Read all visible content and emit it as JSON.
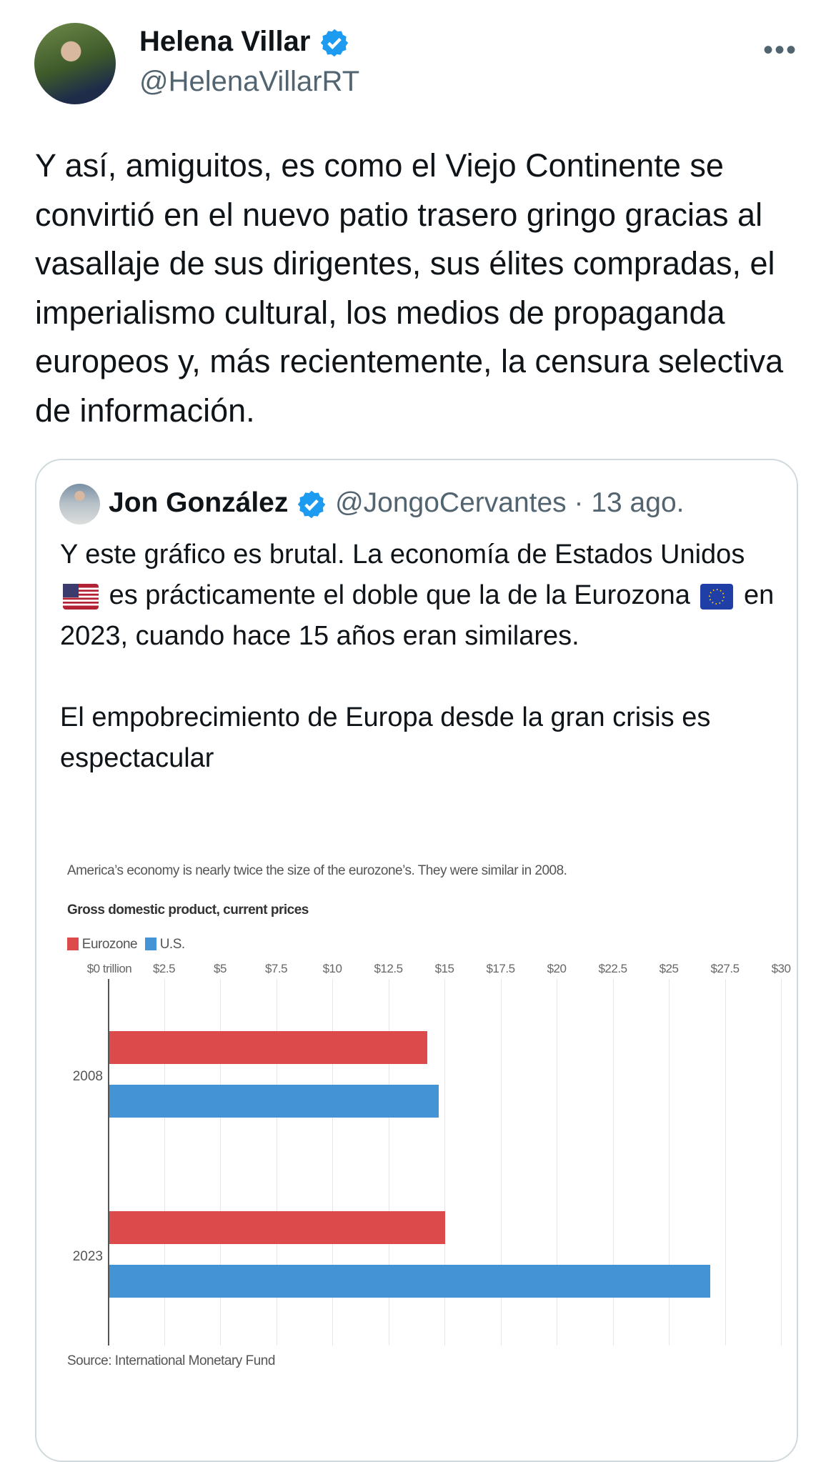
{
  "tweet": {
    "author_name": "Helena Villar",
    "author_handle": "@HelenaVillarRT",
    "more_label": "•••",
    "text": "Y así, amiguitos, es como el Viejo Continente se convirtió en el nuevo patio trasero gringo gracias al vasallaje de sus dirigentes, sus élites compradas, el imperialismo cultural, los medios de propaganda europeos y, más recientemente, la censura selectiva de información."
  },
  "quoted": {
    "author_name": "Jon González",
    "author_handle": "@JongoCervantes",
    "separator": " · ",
    "date": "13 ago.",
    "para1_a": "Y este gráfico es brutal. La economía de Estados Unidos",
    "para1_b": "es prácticamente el doble que la de la Eurozona",
    "para1_c": "en 2023, cuando hace 15 años eran similares.",
    "para2": "El empobrecimiento de Europa desde la gran crisis es espectacular"
  },
  "colors": {
    "verified": "#1d9bf0",
    "eurozone": "#dc4a4c",
    "us": "#4494d5"
  },
  "chart_data": {
    "type": "bar",
    "orientation": "horizontal",
    "caption": "America’s economy is nearly twice the size of the eurozone’s. They were similar in 2008.",
    "title": "Gross domestic product, current prices",
    "categories": [
      "2008",
      "2023"
    ],
    "series": [
      {
        "name": "Eurozone",
        "values": [
          14.2,
          15.0
        ]
      },
      {
        "name": "U.S.",
        "values": [
          14.7,
          26.8
        ]
      }
    ],
    "xlim": [
      0,
      30
    ],
    "x_ticks": [
      "$0 trillion",
      "$2.5",
      "$5",
      "$7.5",
      "$10",
      "$12.5",
      "$15",
      "$17.5",
      "$20",
      "$22.5",
      "$25",
      "$27.5",
      "$30"
    ],
    "grid": true,
    "legend": "top-left",
    "source": "Source: International Monetary Fund"
  }
}
